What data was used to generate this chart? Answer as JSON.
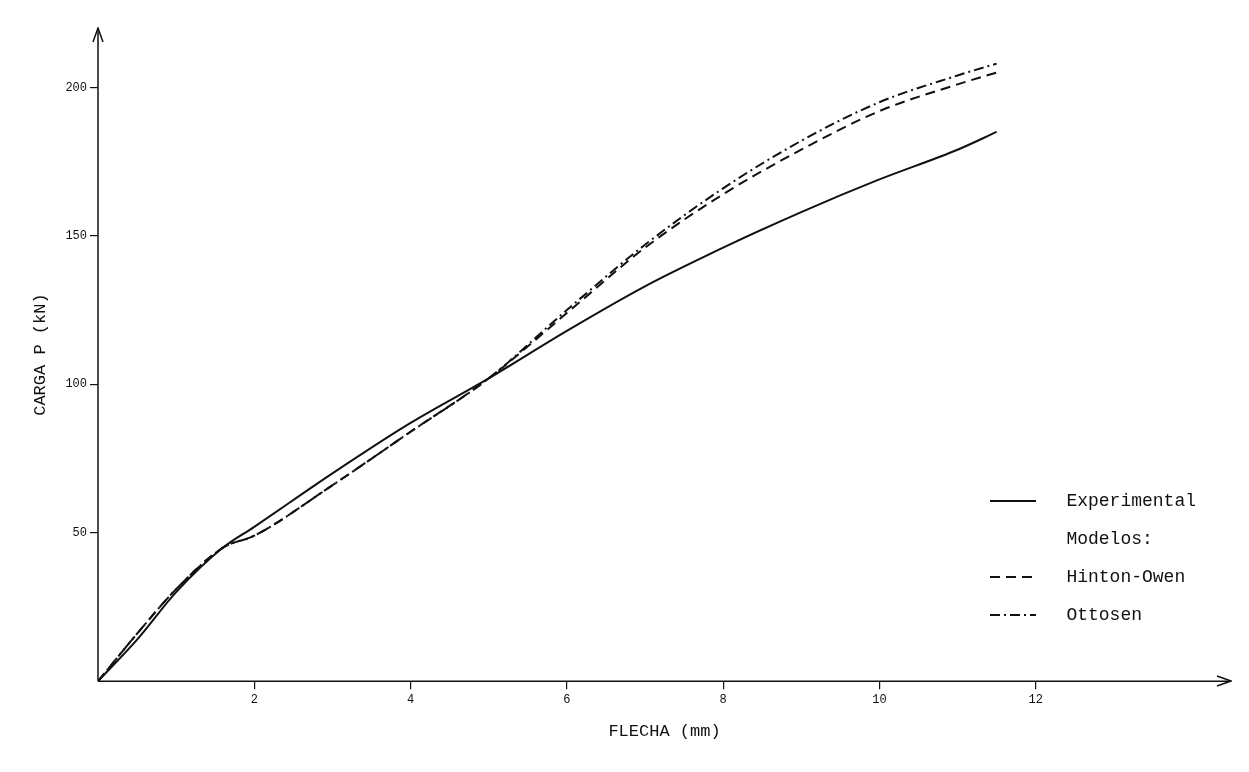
{
  "chart_data": {
    "type": "line",
    "xlabel": "FLECHA (mm)",
    "ylabel": "CARGA P (kN)",
    "x": [
      0,
      0.5,
      1,
      1.6,
      2,
      3,
      4,
      5,
      6,
      7,
      8,
      9,
      10,
      11,
      11.5
    ],
    "series": [
      {
        "name": "Experimental",
        "color": "#111111",
        "line_style": "solid",
        "values": [
          0,
          14,
          30,
          45,
          52,
          70,
          87,
          102,
          118,
          133,
          146,
          158,
          169,
          179,
          185
        ]
      },
      {
        "name": "Hinton-Owen",
        "color": "#111111",
        "line_style": "dashed",
        "values": [
          0,
          16,
          31,
          45,
          49,
          66,
          84,
          102,
          124,
          146,
          164,
          179,
          192,
          201,
          205
        ]
      },
      {
        "name": "Ottosen",
        "color": "#111111",
        "line_style": "dashdot",
        "values": [
          0,
          16,
          31,
          45,
          49,
          66,
          84,
          102,
          125,
          147,
          166,
          182,
          195,
          204,
          208
        ]
      }
    ],
    "xlim": [
      0,
      14.5
    ],
    "ylim": [
      0,
      220
    ],
    "xticks": [
      2,
      4,
      6,
      8,
      10,
      12
    ],
    "yticks": [
      50,
      100,
      150,
      200
    ],
    "grid": false,
    "legend": "bottom right",
    "marker": "none",
    "annotations": [
      "Modelos:"
    ]
  }
}
